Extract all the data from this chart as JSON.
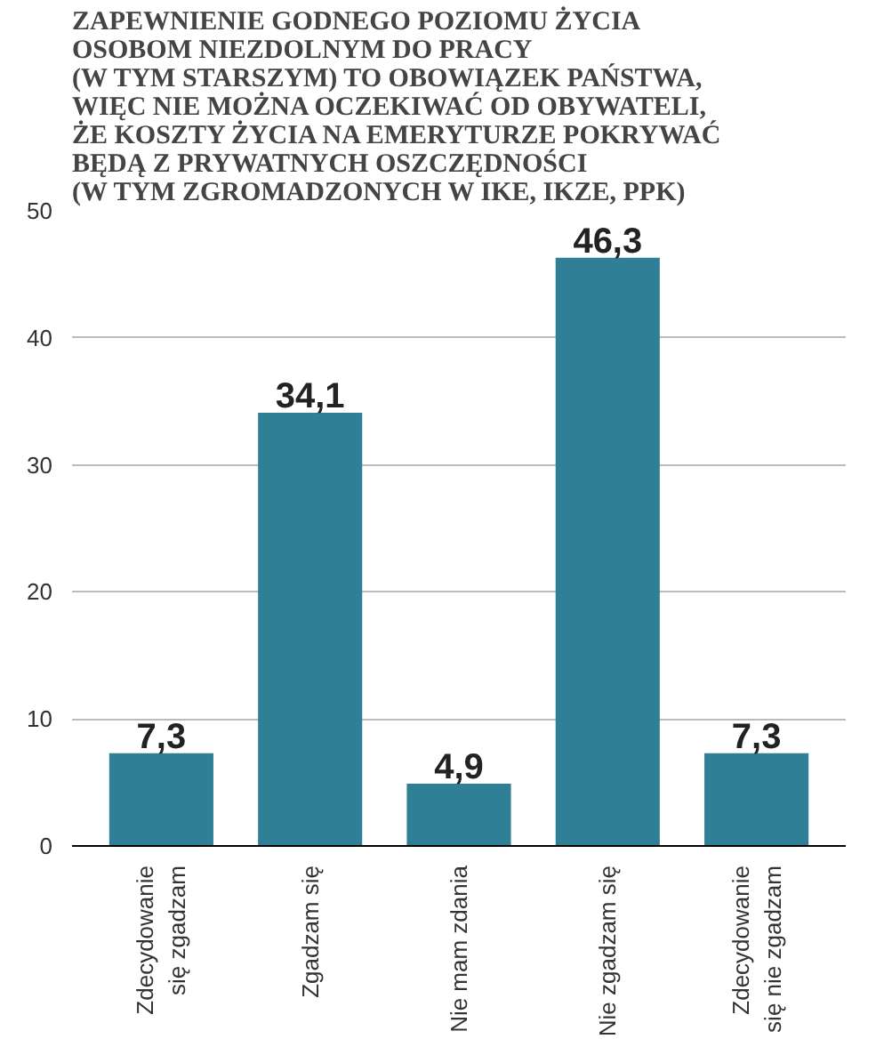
{
  "chart_data": {
    "type": "bar",
    "title": "ZAPEWNIENIE GODNEGO POZIOMU ŻYCIA\nOSOBOM NIEZDOLNYM DO PRACY\n(W TYM STARSZYM) TO OBOWIĄZEK PAŃSTWA,\nWIĘC NIE MOŻNA OCZEKIWAĆ OD OBYWATELI,\nŻE KOSZTY ŻYCIA NA EMERYTURZE POKRYWAĆ\nBĘDĄ Z PRYWATNYCH OSZCZĘDNOŚCI\n(W TYM ZGROMADZONYCH W IKE, IKZE, PPK)",
    "categories": [
      "Zdecydowanie\nsię zgadzam",
      "Zgadzam się",
      "Nie mam zdania",
      "Nie zgadzam się",
      "Zdecydowanie\nsię nie zgadzam"
    ],
    "values": [
      7.3,
      34.1,
      4.9,
      46.3,
      7.3
    ],
    "value_labels": [
      "7,3",
      "34,1",
      "4,9",
      "46,3",
      "7,3"
    ],
    "color": "#2f7f96",
    "ylim": [
      0,
      50
    ],
    "yticks": [
      0,
      10,
      20,
      30,
      40,
      50
    ],
    "grid": "y"
  }
}
